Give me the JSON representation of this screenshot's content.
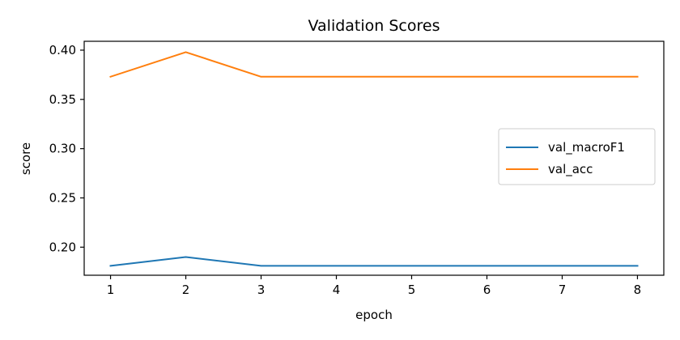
{
  "chart_data": {
    "type": "line",
    "title": "Validation Scores",
    "xlabel": "epoch",
    "ylabel": "score",
    "x": [
      1,
      2,
      3,
      4,
      5,
      6,
      7,
      8
    ],
    "xticks": [
      1,
      2,
      3,
      4,
      5,
      6,
      7,
      8
    ],
    "xlim": [
      0.65,
      8.35
    ],
    "yticks": [
      0.2,
      0.25,
      0.3,
      0.35,
      0.4
    ],
    "ytick_labels": [
      "0.20",
      "0.25",
      "0.30",
      "0.35",
      "0.40"
    ],
    "ylim": [
      0.1715,
      0.409
    ],
    "grid": false,
    "legend_position": "center-right",
    "series": [
      {
        "name": "val_macroF1",
        "color": "#1f77b4",
        "values": [
          0.181,
          0.19,
          0.181,
          0.181,
          0.181,
          0.181,
          0.181,
          0.181
        ]
      },
      {
        "name": "val_acc",
        "color": "#ff7f0e",
        "values": [
          0.373,
          0.398,
          0.373,
          0.373,
          0.373,
          0.373,
          0.373,
          0.373
        ]
      }
    ]
  }
}
